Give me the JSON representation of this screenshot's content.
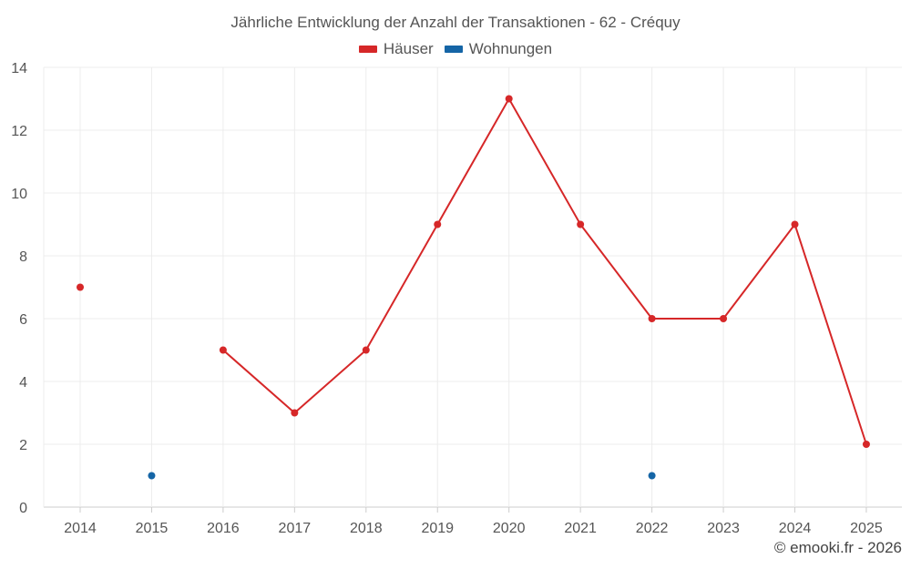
{
  "chart_data": {
    "type": "line",
    "title": "Jährliche Entwicklung der Anzahl der Transaktionen - 62 - Créquy",
    "categories": [
      "2014",
      "2015",
      "2016",
      "2017",
      "2018",
      "2019",
      "2020",
      "2021",
      "2022",
      "2023",
      "2024",
      "2025"
    ],
    "series": [
      {
        "name": "Häuser",
        "color": "#d62728",
        "values": [
          7,
          null,
          5,
          3,
          5,
          9,
          13,
          9,
          6,
          6,
          9,
          2
        ]
      },
      {
        "name": "Wohnungen",
        "color": "#1565a6",
        "values": [
          null,
          1,
          null,
          null,
          null,
          null,
          null,
          null,
          1,
          null,
          null,
          null
        ]
      }
    ],
    "ylim": [
      0,
      14
    ],
    "yticks": [
      0,
      2,
      4,
      6,
      8,
      10,
      12,
      14
    ],
    "grid": true,
    "legend_position": "top-center"
  },
  "credit": "© emooki.fr - 2026"
}
